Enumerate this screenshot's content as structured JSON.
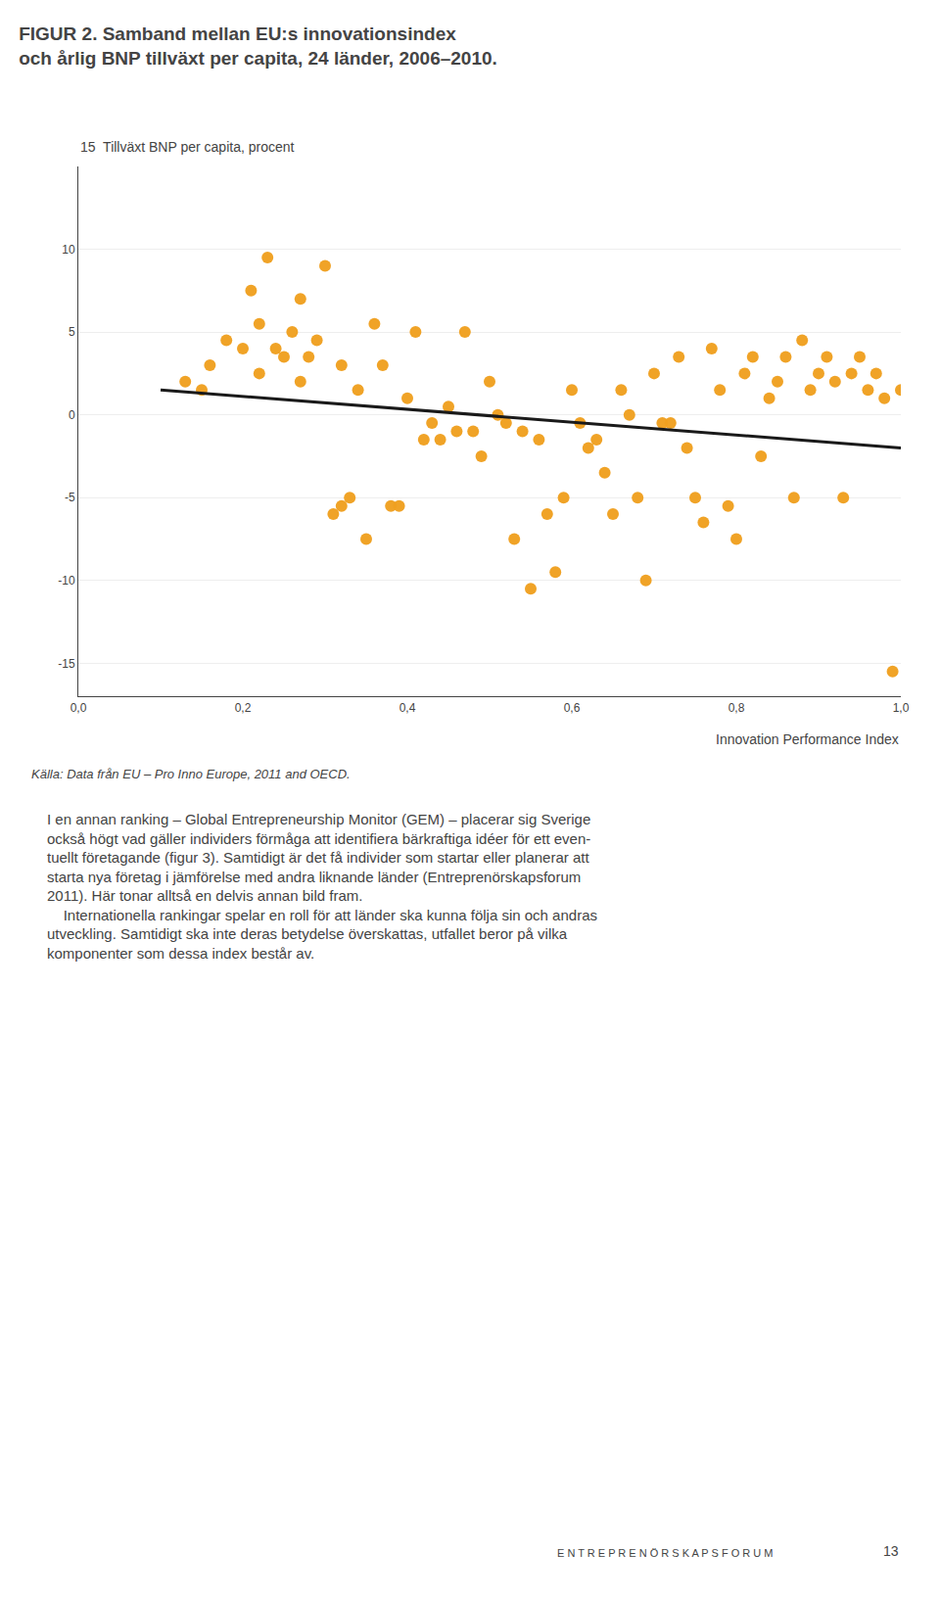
{
  "chart_data": {
    "type": "scatter",
    "title": "FIGUR 2. Samband mellan EU:s innovationsindex\noch årlig BNP tillväxt per capita, 24 länder, 2006–2010.",
    "y_label": "15  Tillväxt BNP per capita, procent",
    "x_label": "Innovation Performance Index",
    "annotations": [
      "Källa: Data från EU – Pro Inno Europe, 2011 and OECD.",
      "I en annan ranking – Global Entrepreneurship Monitor (GEM) – placerar sig Sverige\nockså högt vad gäller individers förmåga att identifiera bärkraftiga idéer för ett even-\ntuellt företagande (figur 3). Samtidigt är det få individer som startar eller planerar att\nstarta nya företag i jämförelse med andra liknande länder (Entreprenörskapsforum\n2011). Här tonar alltså en delvis annan bild fram.\n    Internationella rankingar spelar en roll för att länder ska kunna följa sin och andras\nutveckling. Samtidigt ska inte deras betydelse överskattas, utfallet beror på vilka\nkomponenter som dessa index består av.",
      "E N T R E P R E N Ö R S K A P S F O R U M",
      "13"
    ],
    "series": [
      {
        "type": "scatter",
        "color": "#f0a020",
        "x": [
          0.13,
          0.15,
          0.16,
          0.18,
          0.2,
          0.21,
          0.22,
          0.22,
          0.23,
          0.24,
          0.25,
          0.26,
          0.27,
          0.27,
          0.28,
          0.29,
          0.3,
          0.31,
          0.32,
          0.32,
          0.33,
          0.34,
          0.35,
          0.36,
          0.37,
          0.38,
          0.39,
          0.4,
          0.41,
          0.42,
          0.43,
          0.44,
          0.45,
          0.46,
          0.47,
          0.48,
          0.49,
          0.5,
          0.51,
          0.52,
          0.53,
          0.54,
          0.55,
          0.56,
          0.57,
          0.58,
          0.59,
          0.6,
          0.61,
          0.62,
          0.63,
          0.64,
          0.65,
          0.66,
          0.67,
          0.68,
          0.69,
          0.7,
          0.71,
          0.72,
          0.73,
          0.74,
          0.75,
          0.76,
          0.77,
          0.78,
          0.79,
          0.8,
          0.81,
          0.82,
          0.83,
          0.84,
          0.85,
          0.86,
          0.87,
          0.88,
          0.89,
          0.9,
          0.91,
          0.92,
          0.93,
          0.94,
          0.95,
          0.96,
          0.97,
          0.98,
          0.99,
          1.0
        ],
        "values": [
          2.0,
          1.5,
          3.0,
          4.5,
          4.0,
          7.5,
          2.5,
          5.5,
          9.5,
          4.0,
          3.5,
          5.0,
          2.0,
          7.0,
          3.5,
          4.5,
          9.0,
          -6.0,
          3.0,
          -5.5,
          -5.0,
          1.5,
          -7.5,
          5.5,
          3.0,
          -5.5,
          -5.5,
          1.0,
          5.0,
          -1.5,
          -0.5,
          -1.5,
          0.5,
          -1.0,
          5.0,
          -1.0,
          -2.5,
          2.0,
          0.0,
          -0.5,
          -7.5,
          -1.0,
          -10.5,
          -1.5,
          -6.0,
          -9.5,
          -5.0,
          1.5,
          -0.5,
          -2.0,
          -1.5,
          -3.5,
          -6.0,
          1.5,
          0.0,
          -5.0,
          -10.0,
          2.5,
          -0.5,
          -0.5,
          3.5,
          -2.0,
          -5.0,
          -6.5,
          4.0,
          1.5,
          -5.5,
          -7.5,
          2.5,
          3.5,
          -2.5,
          1.0,
          2.0,
          3.5,
          -5.0,
          4.5,
          1.5,
          2.5,
          3.5,
          2.0,
          -5.0,
          2.5,
          3.5,
          1.5,
          2.5,
          1.0,
          -15.5,
          1.5
        ]
      },
      {
        "type": "line",
        "color": "#1a1a1a",
        "x": [
          0.1,
          1.0
        ],
        "values": [
          1.5,
          -2.0
        ]
      }
    ],
    "xlim": [
      0.0,
      1.0
    ],
    "ylim": [
      -17,
      15
    ],
    "xticks": [
      {
        "value": 0.0,
        "label": "0,0"
      },
      {
        "value": 0.2,
        "label": "0,2"
      },
      {
        "value": 0.4,
        "label": "0,4"
      },
      {
        "value": 0.6,
        "label": "0,6"
      },
      {
        "value": 0.8,
        "label": "0,8"
      },
      {
        "value": 1.0,
        "label": "1,0"
      }
    ],
    "yticks": [
      -15,
      -10,
      -5,
      0,
      5,
      10
    ],
    "grid": "y"
  }
}
